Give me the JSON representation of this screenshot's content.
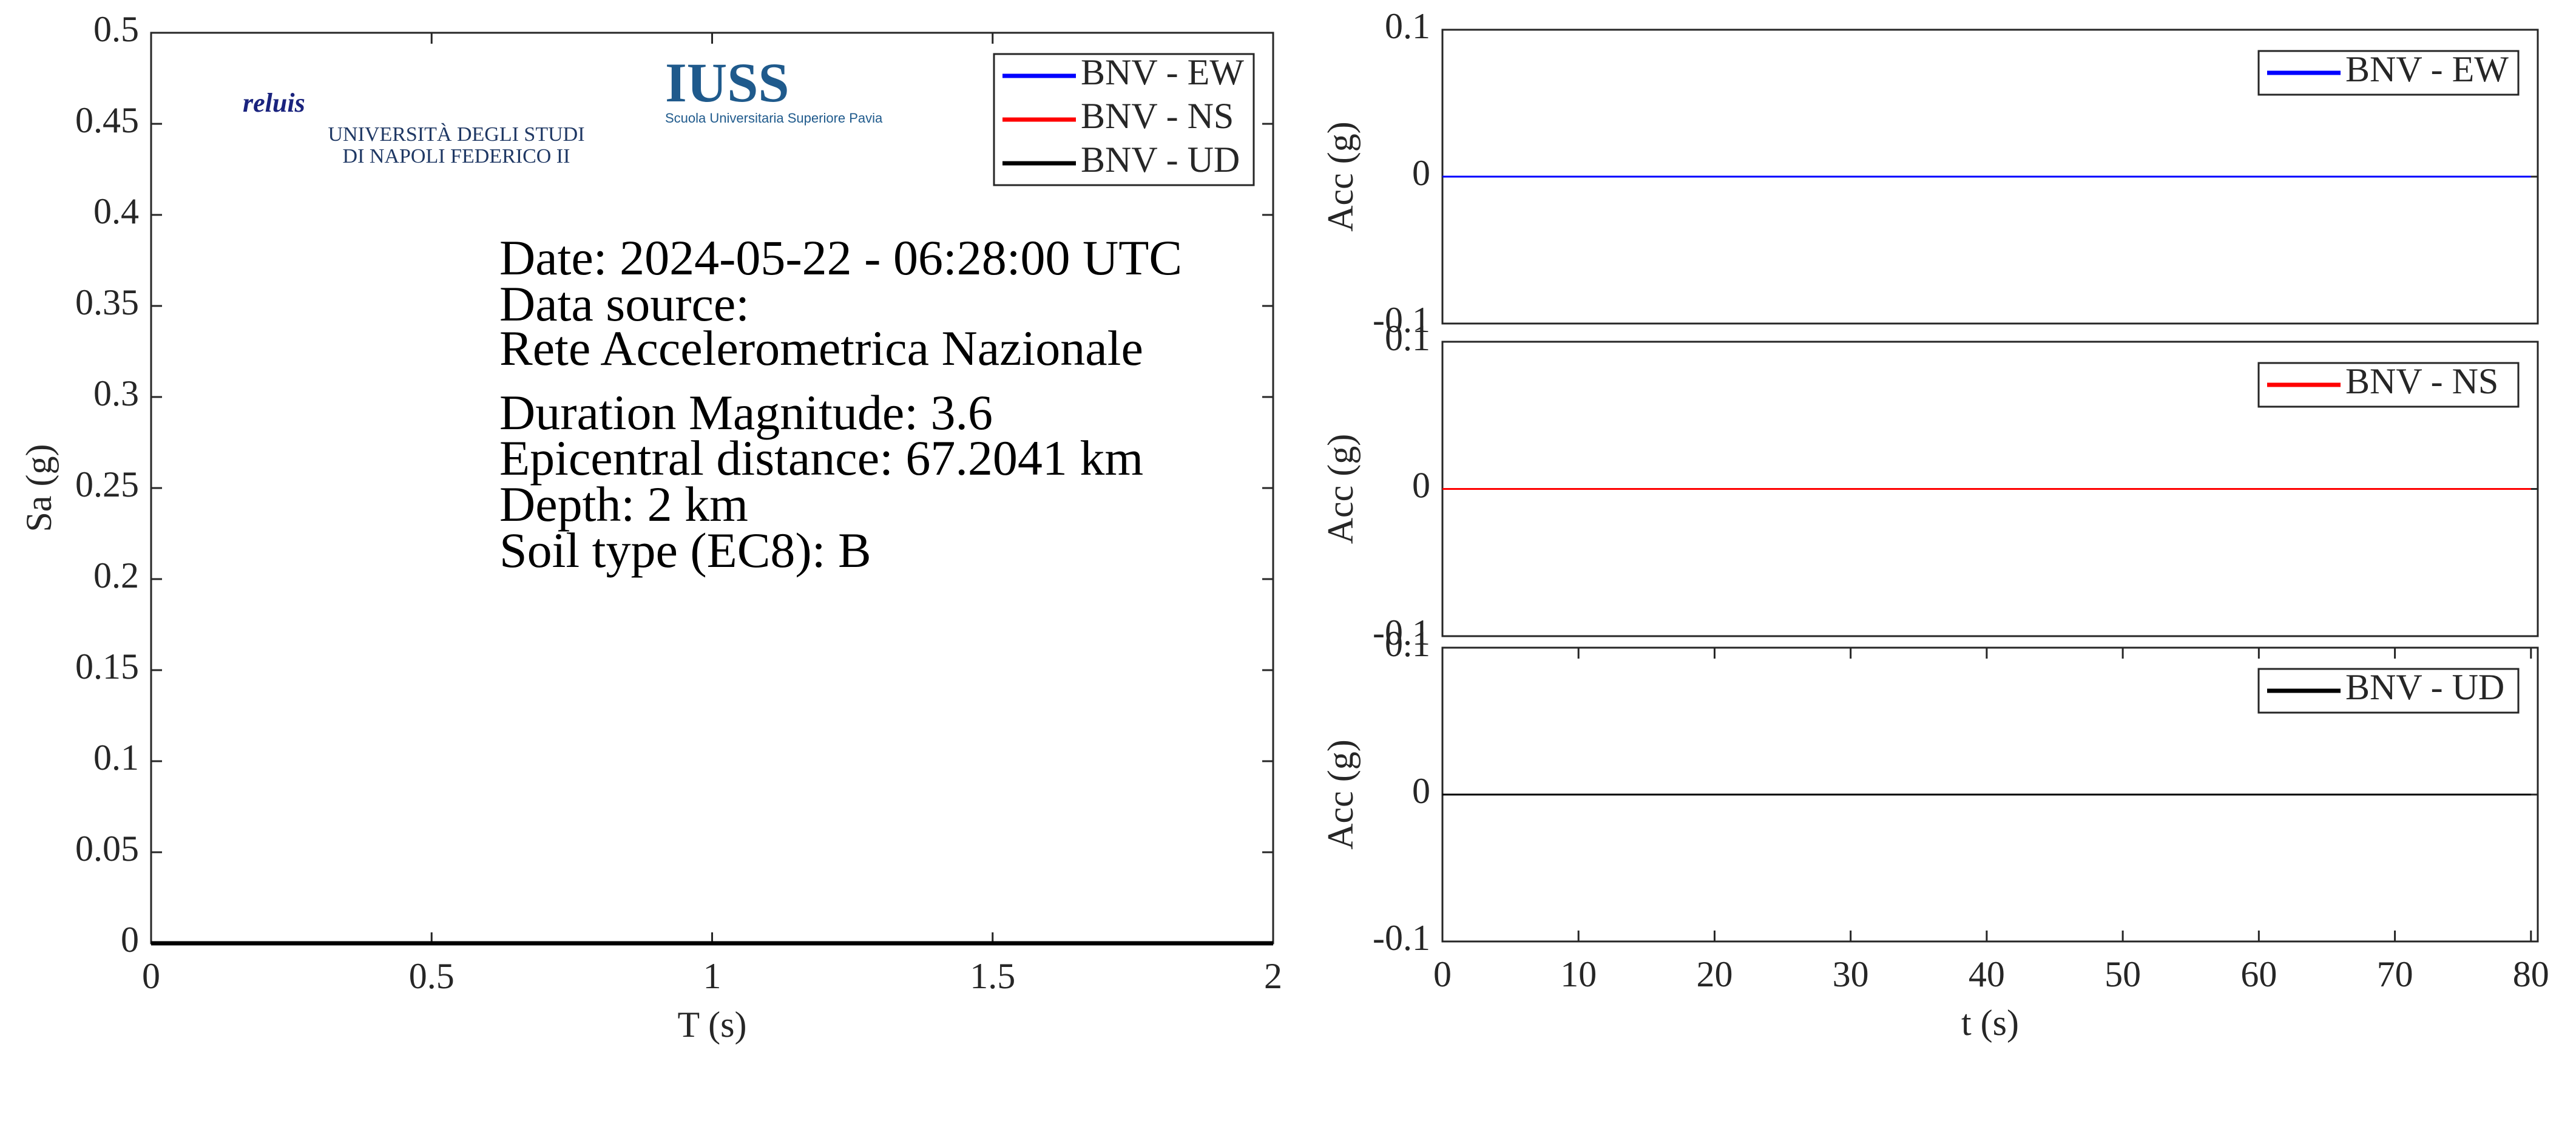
{
  "chart_data": [
    {
      "type": "line",
      "xlabel": "T (s)",
      "ylabel": "Sa (g)",
      "x": [
        0,
        0.5,
        1,
        1.5,
        2
      ],
      "series": [
        {
          "name": "BNV - EW",
          "color": "#0000ff",
          "values": [
            0,
            0,
            0,
            0,
            0
          ]
        },
        {
          "name": "BNV - NS",
          "color": "#ff0000",
          "values": [
            0,
            0,
            0,
            0,
            0
          ]
        },
        {
          "name": "BNV - UD",
          "color": "#000000",
          "values": [
            0,
            0,
            0,
            0,
            0
          ]
        }
      ],
      "xlim": [
        0,
        2
      ],
      "xticks": [
        0,
        0.5,
        1,
        1.5,
        2
      ],
      "ylim": [
        0,
        0.5
      ],
      "yticks": [
        0,
        0.05,
        0.1,
        0.15,
        0.2,
        0.25,
        0.3,
        0.35,
        0.4,
        0.45,
        0.5
      ],
      "legend": "upper right",
      "annotations": [
        "Date: 2024-05-22 - 06:28:00 UTC",
        "Data source:",
        "Rete Accelerometrica Nazionale",
        "Duration Magnitude: 3.6",
        "Epicentral distance: 67.2041 km",
        "Depth: 2 km",
        "Soil type (EC8): B"
      ],
      "logos": [
        "reluis",
        "UNIVERSITÀ DEGLI STUDI",
        "DI NAPOLI FEDERICO II",
        "IUSS",
        "Scuola Universitaria Superiore Pavia"
      ]
    },
    {
      "type": "line",
      "ylabel": "Acc (g)",
      "x": [
        0,
        80
      ],
      "series": [
        {
          "name": "BNV - EW",
          "color": "#0000ff",
          "values": [
            0,
            0
          ]
        }
      ],
      "xlim": [
        0,
        80.5
      ],
      "ylim": [
        -0.1,
        0.1
      ],
      "yticks": [
        -0.1,
        0,
        0.1
      ],
      "legend": "upper right"
    },
    {
      "type": "line",
      "ylabel": "Acc (g)",
      "x": [
        0,
        80
      ],
      "series": [
        {
          "name": "BNV - NS",
          "color": "#ff0000",
          "values": [
            0,
            0
          ]
        }
      ],
      "xlim": [
        0,
        80.5
      ],
      "ylim": [
        -0.1,
        0.1
      ],
      "yticks": [
        -0.1,
        0,
        0.1
      ],
      "legend": "upper right"
    },
    {
      "type": "line",
      "xlabel": "t (s)",
      "ylabel": "Acc (g)",
      "x": [
        0,
        80
      ],
      "series": [
        {
          "name": "BNV - UD",
          "color": "#000000",
          "values": [
            0,
            0
          ]
        }
      ],
      "xlim": [
        0,
        80.5
      ],
      "xticks": [
        0,
        10,
        20,
        30,
        40,
        50,
        60,
        70,
        80
      ],
      "ylim": [
        -0.1,
        0.1
      ],
      "yticks": [
        -0.1,
        0,
        0.1
      ],
      "legend": "upper right"
    }
  ]
}
